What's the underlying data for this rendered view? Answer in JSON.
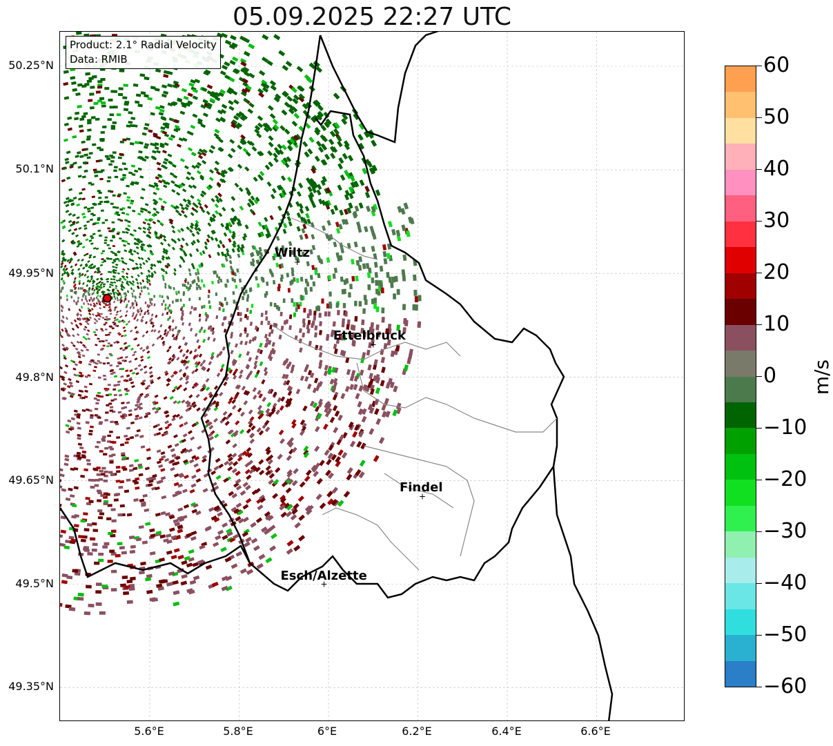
{
  "title": "05.09.2025 22:27 UTC",
  "info": {
    "product": "Product: 2.1° Radial Velocity",
    "data": "Data: RMIB"
  },
  "lat_labels": [
    "50.25°N",
    "50.1°N",
    "49.95°N",
    "49.8°N",
    "49.65°N",
    "49.5°N",
    "49.35°N"
  ],
  "lon_labels": [
    "5.6°E",
    "5.8°E",
    "6°E",
    "6.2°E",
    "6.4°E",
    "6.6°E"
  ],
  "cities": [
    {
      "name": "Wiltz",
      "lon": 5.93,
      "lat": 49.966
    },
    {
      "name": "Ettelbruck",
      "lon": 6.1,
      "lat": 49.847
    },
    {
      "name": "Findel",
      "lon": 6.21,
      "lat": 49.627
    },
    {
      "name": "Esch/Alzette",
      "lon": 5.99,
      "lat": 49.5
    }
  ],
  "radar_site": {
    "lon": 5.505,
    "lat": 49.914
  },
  "colorbar": {
    "unit": "m/s",
    "min": -60,
    "max": 60,
    "tick_labels": [
      "60",
      "50",
      "40",
      "30",
      "20",
      "10",
      "0",
      "−10",
      "−20",
      "−30",
      "−40",
      "−50",
      "−60"
    ],
    "colors": {
      "-60": "#2a7fc8",
      "-55": "#2ab0d0",
      "-50": "#30dede",
      "-45": "#6ae6e6",
      "-40": "#a8ecec",
      "-35": "#90f0b0",
      "-30": "#30f050",
      "-25": "#10e020",
      "-20": "#00c010",
      "-15": "#00a000",
      "-10": "#006400",
      "-5": "#4d7a4d",
      "0": "#7a7a6a",
      "5": "#8a5060",
      "10": "#6a0000",
      "15": "#a00000",
      "20": "#e00000",
      "25": "#ff3040",
      "30": "#ff6080",
      "35": "#ff90c0",
      "40": "#ffb0b8",
      "45": "#ffe0a0",
      "50": "#ffc070",
      "55": "#ffa050"
    }
  }
}
